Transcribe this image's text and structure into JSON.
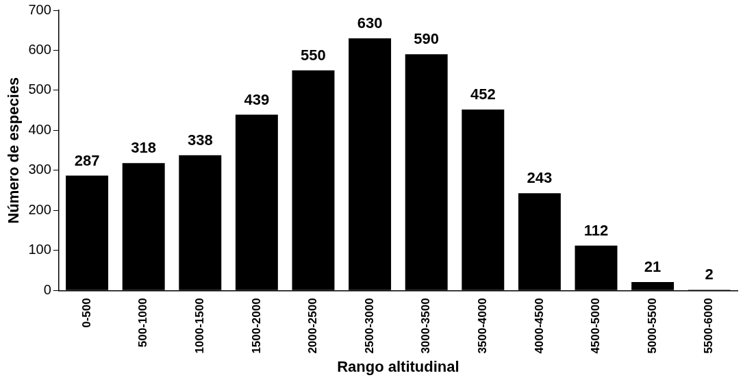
{
  "chart_data": {
    "type": "bar",
    "xlabel": "Rango altitudinal",
    "ylabel": "Número de especies",
    "categories": [
      "0-500",
      "500-1000",
      "1000-1500",
      "1500-2000",
      "2000-2500",
      "2500-3000",
      "3000-3500",
      "3500-4000",
      "4000-4500",
      "4500-5000",
      "5000-5500",
      "5500-6000"
    ],
    "values": [
      287,
      318,
      338,
      439,
      550,
      630,
      590,
      452,
      243,
      112,
      21,
      2
    ],
    "color": "#000000",
    "ylim": [
      0,
      700
    ],
    "yticks": [
      0,
      100,
      200,
      300,
      400,
      500,
      600,
      700
    ],
    "grid": false,
    "legend": false,
    "data_labels": true
  }
}
